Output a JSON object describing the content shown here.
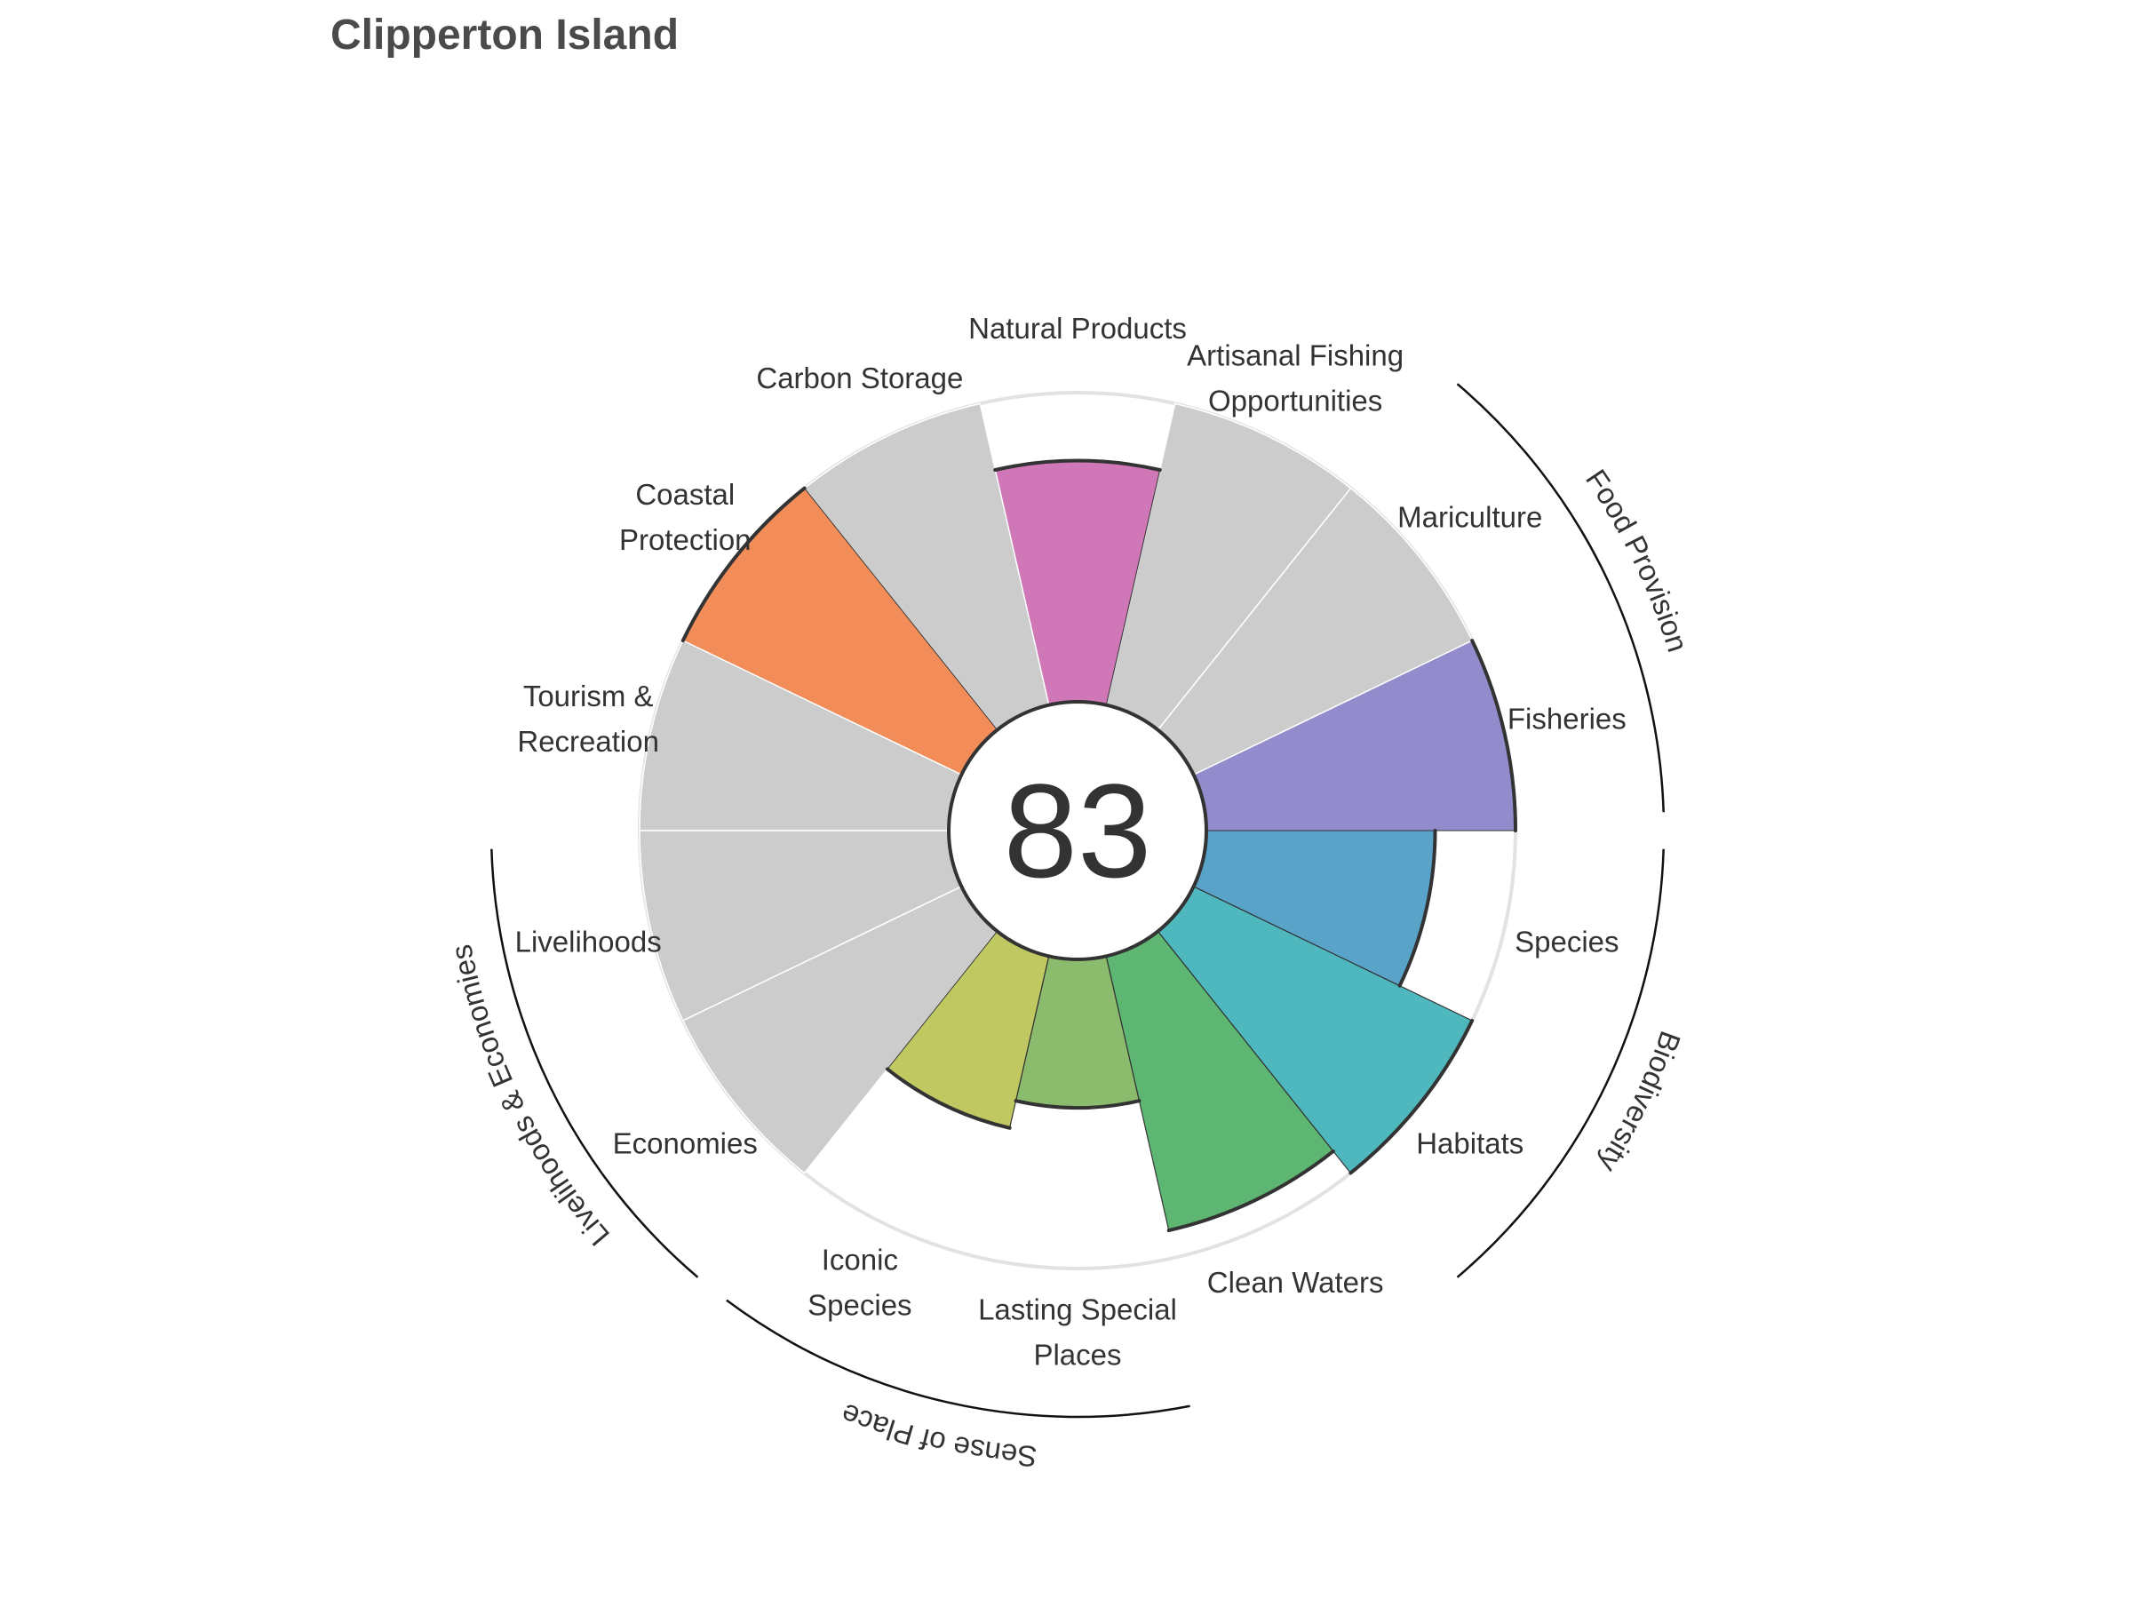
{
  "title": "Clipperton Island",
  "chart_data": {
    "type": "polar-bar",
    "center_score": "83",
    "rlim": [
      0,
      100
    ],
    "grid": false,
    "unscored_color": "#cccccc",
    "goals": [
      {
        "key": "FIS",
        "label_lines": [
          "Fisheries"
        ],
        "value": 100,
        "color": "#938ccc"
      },
      {
        "key": "MAR",
        "label_lines": [
          "Mariculture"
        ],
        "value": null,
        "color": "#cccccc"
      },
      {
        "key": "AO",
        "label_lines": [
          "Artisanal Fishing",
          "Opportunities"
        ],
        "value": null,
        "color": "#cccccc"
      },
      {
        "key": "NP",
        "label_lines": [
          "Natural Products"
        ],
        "value": 78,
        "color": "#d077b7"
      },
      {
        "key": "CS",
        "label_lines": [
          "Carbon Storage"
        ],
        "value": null,
        "color": "#cccccc"
      },
      {
        "key": "CP",
        "label_lines": [
          "Coastal",
          "Protection"
        ],
        "value": 100,
        "color": "#f28c58"
      },
      {
        "key": "TR",
        "label_lines": [
          "Tourism &",
          "Recreation"
        ],
        "value": null,
        "color": "#cccccc"
      },
      {
        "key": "LIV",
        "label_lines": [
          "Livelihoods"
        ],
        "value": null,
        "color": "#cccccc"
      },
      {
        "key": "ECO",
        "label_lines": [
          "Economies"
        ],
        "value": null,
        "color": "#cccccc"
      },
      {
        "key": "ICO",
        "label_lines": [
          "Iconic",
          "Species"
        ],
        "value": 57,
        "color": "#bfc861"
      },
      {
        "key": "LSP",
        "label_lines": [
          "Lasting Special",
          "Places"
        ],
        "value": 48,
        "color": "#8bbb6c"
      },
      {
        "key": "CW",
        "label_lines": [
          "Clean Waters"
        ],
        "value": 91,
        "color": "#5db671"
      },
      {
        "key": "HAB",
        "label_lines": [
          "Habitats"
        ],
        "value": 100,
        "color": "#4eb8be"
      },
      {
        "key": "SPP",
        "label_lines": [
          "Species"
        ],
        "value": 74,
        "color": "#59a3c9"
      }
    ],
    "groups": [
      {
        "label": "Food Provision",
        "goals": [
          "FIS",
          "MAR"
        ]
      },
      {
        "label": "Biodiversity",
        "goals": [
          "HAB",
          "SPP"
        ]
      },
      {
        "label": "Sense of Place",
        "goals": [
          "ICO",
          "LSP"
        ]
      },
      {
        "label": "Livelihoods & Economies",
        "goals": [
          "LIV",
          "ECO"
        ]
      }
    ]
  }
}
